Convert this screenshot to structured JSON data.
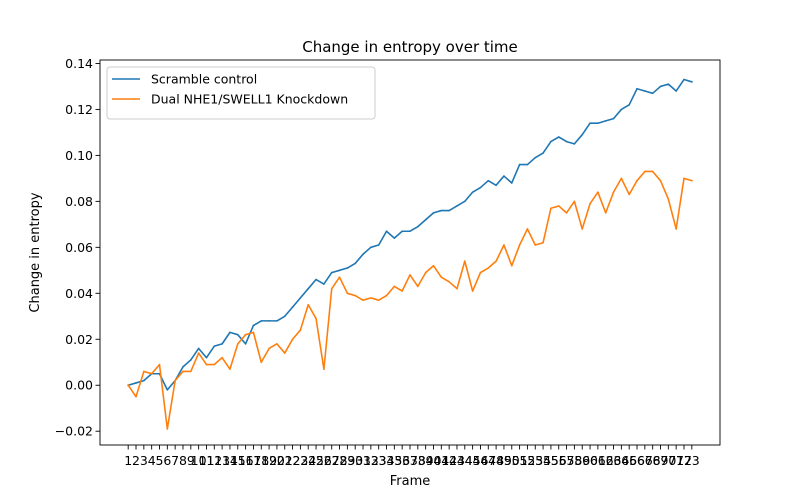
{
  "chart_data": {
    "type": "line",
    "title": "Change in entropy over time",
    "xlabel": "Frame",
    "ylabel": "Change in entropy",
    "ylim": [
      -0.026,
      0.1415
    ],
    "yticks": [
      -0.02,
      0.0,
      0.02,
      0.04,
      0.06,
      0.08,
      0.1,
      0.12,
      0.14
    ],
    "yticks_labels": [
      "−0.02",
      "0.00",
      "0.02",
      "0.04",
      "0.06",
      "0.08",
      "0.10",
      "0.12",
      "0.14"
    ],
    "grid": false,
    "legend_position": "upper-left",
    "x": [
      1,
      2,
      3,
      4,
      5,
      6,
      7,
      8,
      9,
      10,
      11,
      12,
      13,
      14,
      15,
      16,
      17,
      18,
      19,
      20,
      21,
      22,
      23,
      24,
      25,
      26,
      27,
      28,
      29,
      30,
      31,
      32,
      33,
      34,
      35,
      36,
      37,
      38,
      39,
      40,
      41,
      42,
      43,
      44,
      45,
      46,
      47,
      48,
      49,
      50,
      51,
      52,
      53,
      54,
      55,
      56,
      57,
      58,
      59,
      60,
      61,
      62,
      63,
      64,
      65,
      66,
      67,
      68,
      69,
      70,
      71,
      72,
      73
    ],
    "x_tick_labels": [
      "1",
      "2",
      "3",
      "4",
      "5",
      "6",
      "7",
      "8",
      "9",
      "10",
      "11",
      "12",
      "13",
      "14",
      "15",
      "16",
      "17",
      "18",
      "19",
      "20",
      "21",
      "22",
      "23",
      "24",
      "25",
      "26",
      "27",
      "28",
      "29",
      "30",
      "31",
      "32",
      "33",
      "34",
      "35",
      "36",
      "37",
      "38",
      "39",
      "40",
      "41",
      "42",
      "43",
      "44",
      "45",
      "46",
      "47",
      "48",
      "49",
      "50",
      "51",
      "52",
      "53",
      "54",
      "55",
      "56",
      "57",
      "58",
      "59",
      "60",
      "61",
      "62",
      "63",
      "64",
      "65",
      "66",
      "67",
      "68",
      "69",
      "70",
      "71",
      "72",
      "73"
    ],
    "series": [
      {
        "name": "Scramble control",
        "color": "#1f77b4",
        "values": [
          0.0,
          0.001,
          0.002,
          0.005,
          0.005,
          -0.002,
          0.002,
          0.008,
          0.011,
          0.016,
          0.012,
          0.017,
          0.018,
          0.023,
          0.022,
          0.018,
          0.026,
          0.028,
          0.028,
          0.028,
          0.03,
          0.034,
          0.038,
          0.042,
          0.046,
          0.044,
          0.049,
          0.05,
          0.051,
          0.053,
          0.057,
          0.06,
          0.061,
          0.067,
          0.064,
          0.067,
          0.067,
          0.069,
          0.072,
          0.075,
          0.076,
          0.076,
          0.078,
          0.08,
          0.084,
          0.086,
          0.089,
          0.087,
          0.091,
          0.088,
          0.096,
          0.096,
          0.099,
          0.101,
          0.106,
          0.108,
          0.106,
          0.105,
          0.109,
          0.114,
          0.114,
          0.115,
          0.116,
          0.12,
          0.122,
          0.129,
          0.128,
          0.127,
          0.13,
          0.131,
          0.128,
          0.133,
          0.132
        ]
      },
      {
        "name": "Dual NHE1/SWELL1 Knockdown",
        "color": "#ff7f0e",
        "values": [
          0.0,
          -0.005,
          0.006,
          0.005,
          0.009,
          -0.019,
          0.002,
          0.006,
          0.006,
          0.014,
          0.009,
          0.009,
          0.012,
          0.007,
          0.018,
          0.022,
          0.023,
          0.01,
          0.016,
          0.018,
          0.014,
          0.02,
          0.024,
          0.035,
          0.029,
          0.007,
          0.042,
          0.047,
          0.04,
          0.039,
          0.037,
          0.038,
          0.037,
          0.039,
          0.043,
          0.041,
          0.048,
          0.043,
          0.049,
          0.052,
          0.047,
          0.045,
          0.042,
          0.054,
          0.041,
          0.049,
          0.051,
          0.054,
          0.061,
          0.052,
          0.061,
          0.068,
          0.061,
          0.062,
          0.077,
          0.078,
          0.075,
          0.08,
          0.068,
          0.079,
          0.084,
          0.075,
          0.084,
          0.09,
          0.083,
          0.089,
          0.093,
          0.093,
          0.089,
          0.081,
          0.068,
          0.09,
          0.089
        ]
      }
    ]
  }
}
